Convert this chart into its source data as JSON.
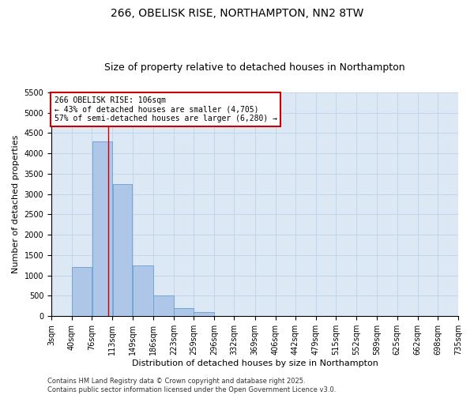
{
  "title": "266, OBELISK RISE, NORTHAMPTON, NN2 8TW",
  "subtitle": "Size of property relative to detached houses in Northampton",
  "xlabel": "Distribution of detached houses by size in Northampton",
  "ylabel": "Number of detached properties",
  "bin_edges": [
    3,
    40,
    76,
    113,
    149,
    186,
    223,
    259,
    296,
    332,
    369,
    406,
    442,
    479,
    515,
    552,
    589,
    625,
    662,
    698,
    735
  ],
  "bin_labels": [
    "3sqm",
    "40sqm",
    "76sqm",
    "113sqm",
    "149sqm",
    "186sqm",
    "223sqm",
    "259sqm",
    "296sqm",
    "332sqm",
    "369sqm",
    "406sqm",
    "442sqm",
    "479sqm",
    "515sqm",
    "552sqm",
    "589sqm",
    "625sqm",
    "662sqm",
    "698sqm",
    "735sqm"
  ],
  "counts": [
    0,
    1200,
    4300,
    3250,
    1250,
    500,
    200,
    100,
    0,
    0,
    0,
    0,
    0,
    0,
    0,
    0,
    0,
    0,
    0,
    0
  ],
  "bar_color": "#aec6e8",
  "bar_edge_color": "#6aa0cc",
  "property_size": 106,
  "red_line_color": "#cc0000",
  "annotation_text": "266 OBELISK RISE: 106sqm\n← 43% of detached houses are smaller (4,705)\n57% of semi-detached houses are larger (6,280) →",
  "annotation_box_facecolor": "#ffffff",
  "annotation_box_edgecolor": "#cc0000",
  "ylim": [
    0,
    5500
  ],
  "yticks": [
    0,
    500,
    1000,
    1500,
    2000,
    2500,
    3000,
    3500,
    4000,
    4500,
    5000,
    5500
  ],
  "plot_bg_color": "#dce9f5",
  "grid_color": "#b8cfe8",
  "footer_text": "Contains HM Land Registry data © Crown copyright and database right 2025.\nContains public sector information licensed under the Open Government Licence v3.0.",
  "title_fontsize": 10,
  "subtitle_fontsize": 9,
  "axis_label_fontsize": 8,
  "tick_fontsize": 7,
  "annotation_fontsize": 7,
  "footer_fontsize": 6
}
